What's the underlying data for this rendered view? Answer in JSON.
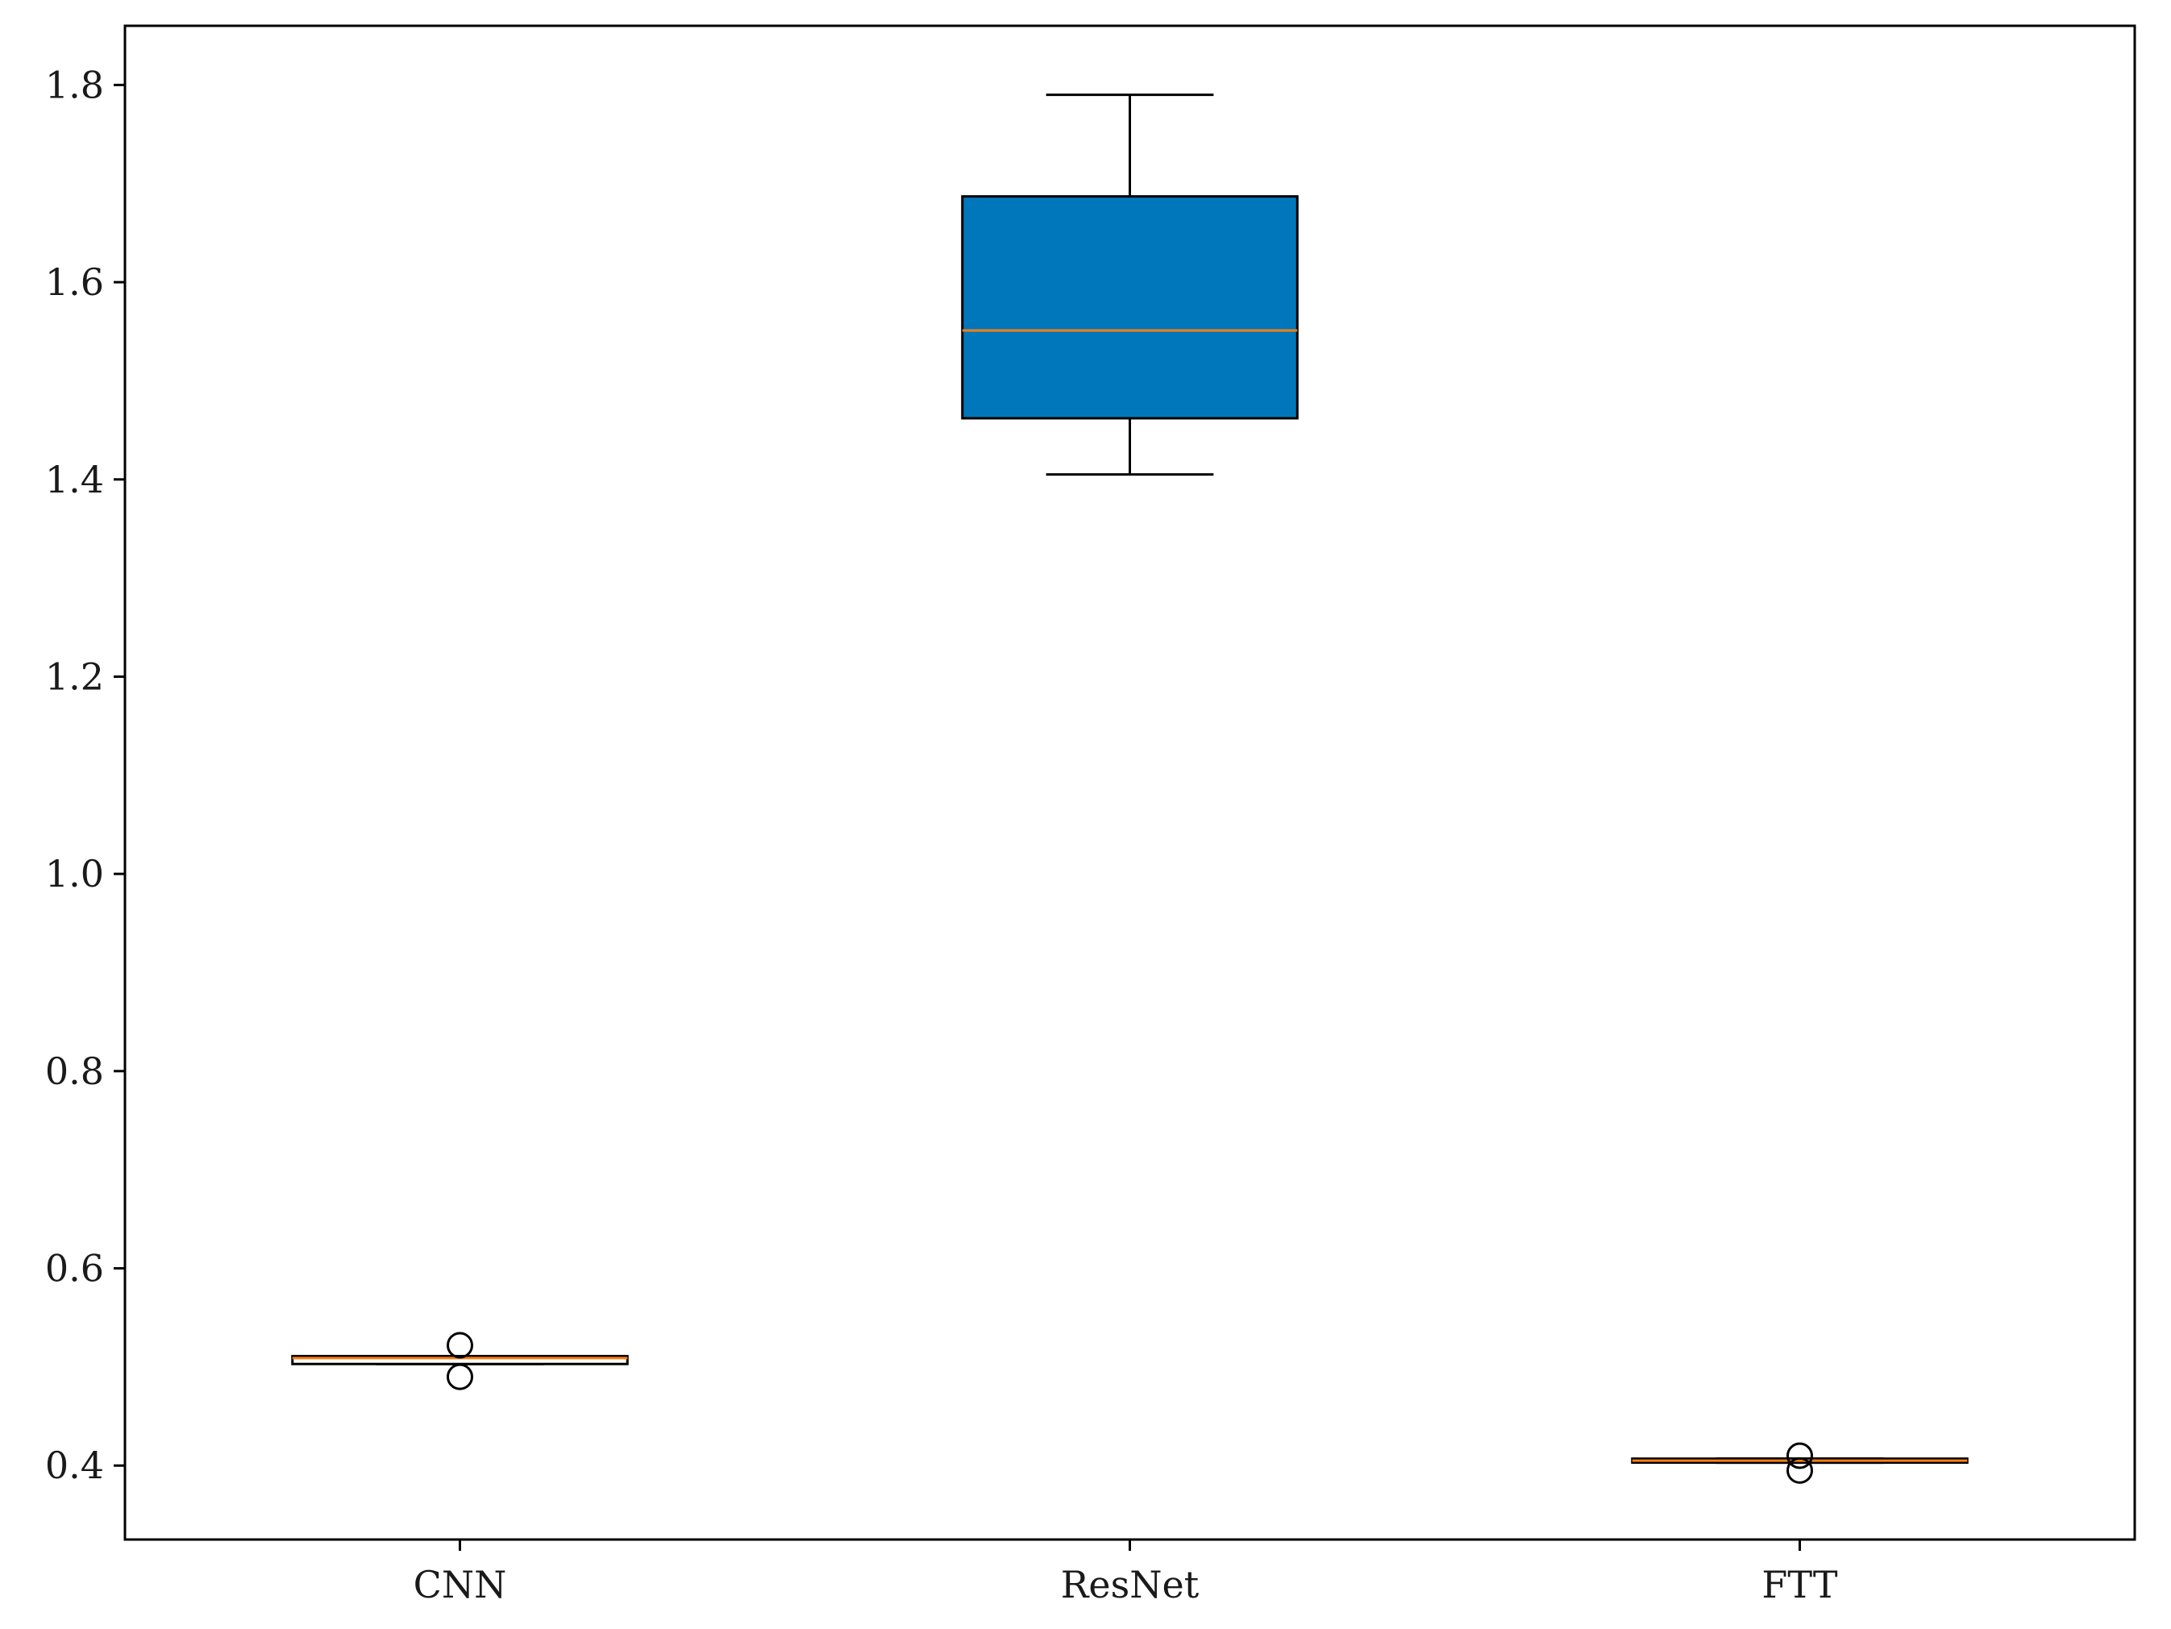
{
  "chart_data": {
    "type": "box",
    "title": "",
    "xlabel": "",
    "ylabel": "",
    "categories": [
      "CNN",
      "ResNet",
      "FTT"
    ],
    "ylim": [
      0.325,
      1.86
    ],
    "yticks": [
      0.4,
      0.6,
      0.8,
      1.0,
      1.2,
      1.4,
      1.6,
      1.8
    ],
    "ytick_labels": [
      "0.4",
      "0.6",
      "0.8",
      "1.0",
      "1.2",
      "1.4",
      "1.6",
      "1.8"
    ],
    "grid": false,
    "legend": "none",
    "boxes": [
      {
        "category": "CNN",
        "whisker_low": 0.503,
        "q1": 0.503,
        "median": 0.509,
        "q3": 0.511,
        "whisker_high": 0.511,
        "outliers": [
          0.522,
          0.49
        ],
        "filled": false
      },
      {
        "category": "ResNet",
        "whisker_low": 1.405,
        "q1": 1.462,
        "median": 1.551,
        "q3": 1.687,
        "whisker_high": 1.79,
        "outliers": [],
        "filled": true
      },
      {
        "category": "FTT",
        "whisker_low": 0.403,
        "q1": 0.403,
        "median": 0.405,
        "q3": 0.407,
        "whisker_high": 0.407,
        "outliers": [
          0.41,
          0.395
        ],
        "filled": false
      }
    ],
    "colors": {
      "box_fill": "#0077bb",
      "median": "#ff7f0e",
      "edge": "#000000"
    }
  }
}
